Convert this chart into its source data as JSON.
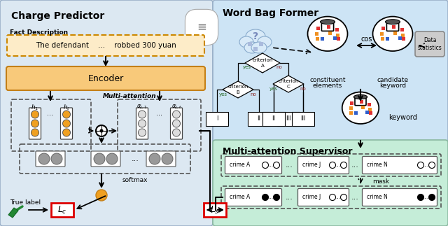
{
  "title_left": "Charge Predictor",
  "title_right": "Word Bag Former",
  "title_supervisor": "Multi-attention Supervisor",
  "fact_text": "The defendant    ...    robbed 300 yuan",
  "encoder_text": "Encoder",
  "multi_attn_text": "Multi-attention",
  "softmax_text": "softmax",
  "true_label_text": "True label",
  "keyword_text": "keyword",
  "constituent_text1": "constituent",
  "constituent_text2": "elements",
  "candidate_text1": "candidate",
  "candidate_text2": "keyword",
  "cos_text": "cos",
  "data_stats_text": "Data\nstatistics",
  "mask_text": "mask",
  "bg_left_color": "#dce8f0",
  "bg_right_color": "#cde4f5",
  "bg_supervisor_color": "#c5edd8",
  "encoder_fill": "#f8c97a",
  "fact_fill": "#f8d89a",
  "orange_color": "#f0a020",
  "gray_color": "#999999",
  "red_color": "#dd0000"
}
